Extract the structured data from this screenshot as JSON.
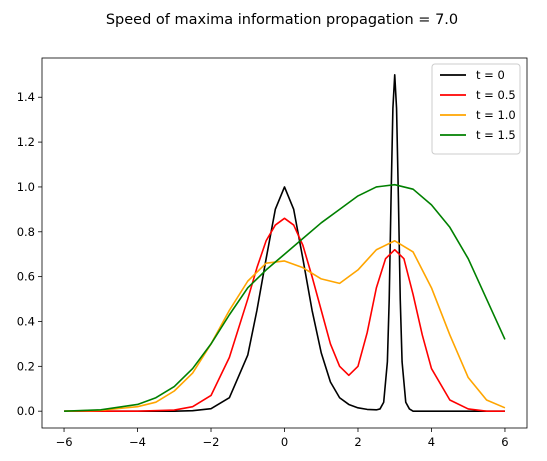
{
  "chart_data": {
    "type": "line",
    "title": "Speed of maxima information propagation = 7.0",
    "xlabel": "",
    "ylabel": "",
    "xlim": [
      -6.6,
      6.6
    ],
    "ylim": [
      -0.075,
      1.575
    ],
    "xticks": [
      -6,
      -4,
      -2,
      0,
      2,
      4,
      6
    ],
    "xtick_labels": [
      "−6",
      "−4",
      "−2",
      "0",
      "2",
      "4",
      "6"
    ],
    "yticks": [
      0.0,
      0.2,
      0.4,
      0.6,
      0.8,
      1.0,
      1.2,
      1.4
    ],
    "ytick_labels": [
      "0.0",
      "0.2",
      "0.4",
      "0.6",
      "0.8",
      "1.0",
      "1.2",
      "1.4"
    ],
    "grid": false,
    "legend_position": "top-right",
    "series": [
      {
        "name": "t = 0",
        "color": "#000000",
        "x": [
          -6.0,
          -4.0,
          -3.0,
          -2.5,
          -2.0,
          -1.5,
          -1.0,
          -0.75,
          -0.5,
          -0.25,
          0.0,
          0.25,
          0.5,
          0.75,
          1.0,
          1.25,
          1.5,
          1.75,
          2.0,
          2.25,
          2.5,
          2.6,
          2.7,
          2.8,
          2.85,
          2.9,
          2.95,
          3.0,
          3.05,
          3.1,
          3.15,
          3.2,
          3.3,
          3.4,
          3.5,
          4.0,
          5.0,
          6.0
        ],
        "y": [
          0.0,
          0.0,
          0.0,
          0.002,
          0.011,
          0.06,
          0.25,
          0.45,
          0.68,
          0.9,
          1.0,
          0.9,
          0.68,
          0.45,
          0.26,
          0.13,
          0.06,
          0.03,
          0.015,
          0.008,
          0.006,
          0.01,
          0.04,
          0.22,
          0.5,
          0.95,
          1.35,
          1.5,
          1.35,
          0.95,
          0.5,
          0.22,
          0.04,
          0.01,
          0.0,
          0.0,
          0.0,
          0.0
        ]
      },
      {
        "name": "t = 0.5",
        "color": "#ff0000",
        "x": [
          -6.0,
          -4.0,
          -3.0,
          -2.5,
          -2.0,
          -1.5,
          -1.0,
          -0.75,
          -0.5,
          -0.25,
          0.0,
          0.25,
          0.5,
          0.75,
          1.0,
          1.25,
          1.5,
          1.75,
          2.0,
          2.25,
          2.5,
          2.75,
          3.0,
          3.25,
          3.5,
          3.75,
          4.0,
          4.5,
          5.0,
          5.5,
          6.0
        ],
        "y": [
          0.0,
          0.0,
          0.005,
          0.02,
          0.07,
          0.24,
          0.5,
          0.64,
          0.76,
          0.83,
          0.86,
          0.83,
          0.74,
          0.6,
          0.45,
          0.3,
          0.2,
          0.16,
          0.2,
          0.35,
          0.55,
          0.68,
          0.72,
          0.68,
          0.52,
          0.34,
          0.19,
          0.05,
          0.01,
          0.0,
          0.0
        ]
      },
      {
        "name": "t = 1.0",
        "color": "#ffa500",
        "x": [
          -6.0,
          -5.0,
          -4.0,
          -3.5,
          -3.0,
          -2.5,
          -2.0,
          -1.5,
          -1.0,
          -0.5,
          0.0,
          0.5,
          1.0,
          1.5,
          2.0,
          2.5,
          3.0,
          3.5,
          4.0,
          4.5,
          5.0,
          5.5,
          6.0
        ],
        "y": [
          0.0,
          0.004,
          0.02,
          0.04,
          0.09,
          0.17,
          0.3,
          0.45,
          0.58,
          0.66,
          0.67,
          0.64,
          0.59,
          0.57,
          0.63,
          0.72,
          0.76,
          0.71,
          0.55,
          0.34,
          0.15,
          0.05,
          0.015
        ]
      },
      {
        "name": "t = 1.5",
        "color": "#008000",
        "x": [
          -6.0,
          -5.0,
          -4.0,
          -3.5,
          -3.0,
          -2.5,
          -2.0,
          -1.5,
          -1.0,
          -0.5,
          0.0,
          0.5,
          1.0,
          1.5,
          2.0,
          2.5,
          3.0,
          3.5,
          4.0,
          4.5,
          5.0,
          5.5,
          6.0
        ],
        "y": [
          0.0,
          0.006,
          0.03,
          0.06,
          0.11,
          0.19,
          0.3,
          0.43,
          0.55,
          0.63,
          0.7,
          0.77,
          0.84,
          0.9,
          0.96,
          1.0,
          1.01,
          0.99,
          0.92,
          0.82,
          0.68,
          0.5,
          0.32
        ]
      }
    ]
  }
}
